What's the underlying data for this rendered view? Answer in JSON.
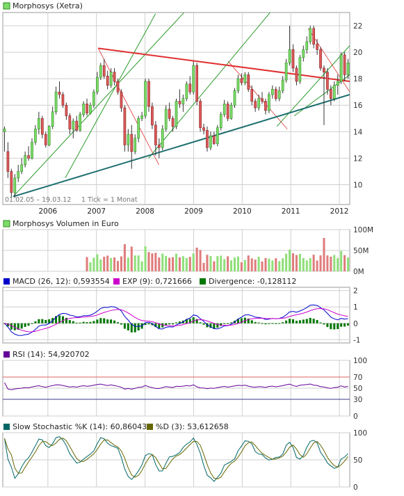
{
  "colors": {
    "up": "#7ddc6a",
    "up_edge": "#2f8a22",
    "down": "#dc5a5a",
    "down_edge": "#8a1f1f",
    "volume_up": "#8fe07a",
    "volume_down": "#e07c7c",
    "macd": "#0000cc",
    "signal": "#cc00cc",
    "divergence": "#007700",
    "rsi": "#660099",
    "stoch_k": "#006666",
    "stoch_d": "#666600",
    "grid": "#cfcfcf",
    "frame": "#999999",
    "support": "#1c6e6e",
    "resistance": "#e03030",
    "channel": "#2a9a2a",
    "rsi_hi": "#e06060",
    "rsi_lo": "#3a3a8a"
  },
  "panels": {
    "price": {
      "legend": "Morphosys (Xetra)",
      "range": "01.02.05 – 19.03.12",
      "tick_info": "1 Tick = 1 Monat",
      "y_ticks": [
        "22",
        "20",
        "18",
        "16",
        "14",
        "12",
        "10"
      ]
    },
    "volume": {
      "legend": "Morphosys Volumen in Euro",
      "y_ticks": [
        "100M",
        "50M",
        "0M"
      ]
    },
    "macd": {
      "legend_macd": "MACD (26, 12): 0,593554",
      "legend_exp": "EXP (9): 0,721666",
      "legend_div": "Divergence: -0,128112",
      "y_ticks": [
        "2",
        "1",
        "0",
        "-1"
      ]
    },
    "rsi": {
      "legend": "RSI (14): 54,920702",
      "y_ticks": [
        "100",
        "70",
        "50",
        "30",
        "0"
      ]
    },
    "stoch": {
      "legend_k": "Slow Stochastic %K (14): 60,860431",
      "legend_d": "%D (3): 53,612658",
      "y_ticks": [
        "100",
        "50",
        "0"
      ]
    }
  },
  "chart_data": {
    "type": "candlestick",
    "x_ticks": [
      "2006",
      "2007",
      "2008",
      "2009",
      "2010",
      "2011",
      "2012"
    ],
    "price": {
      "ylim": [
        8.5,
        23
      ],
      "candles": [
        [
          14.0,
          14.4,
          12.5,
          14.2
        ],
        [
          12.5,
          13.2,
          10.5,
          11.0
        ],
        [
          11.0,
          11.2,
          9.0,
          9.4
        ],
        [
          9.4,
          10.8,
          9.0,
          10.5
        ],
        [
          10.5,
          11.5,
          10.2,
          11.0
        ],
        [
          11.0,
          12.0,
          10.8,
          11.5
        ],
        [
          11.5,
          12.5,
          11.3,
          12.2
        ],
        [
          12.2,
          12.9,
          11.8,
          12.0
        ],
        [
          12.0,
          13.5,
          11.9,
          13.2
        ],
        [
          13.2,
          14.5,
          13.0,
          14.2
        ],
        [
          14.2,
          15.5,
          13.8,
          15.0
        ],
        [
          15.0,
          15.2,
          13.5,
          13.8
        ],
        [
          13.8,
          14.0,
          12.8,
          13.0
        ],
        [
          13.0,
          14.5,
          12.9,
          14.4
        ],
        [
          14.4,
          15.9,
          14.2,
          15.5
        ],
        [
          15.5,
          17.4,
          15.3,
          17.0
        ],
        [
          17.0,
          17.8,
          16.5,
          16.8
        ],
        [
          16.8,
          17.0,
          15.8,
          16.0
        ],
        [
          16.0,
          16.2,
          14.9,
          15.2
        ],
        [
          15.2,
          15.4,
          13.8,
          14.2
        ],
        [
          14.2,
          15.0,
          13.5,
          14.8
        ],
        [
          14.8,
          15.2,
          14.0,
          14.1
        ],
        [
          14.1,
          15.5,
          14.0,
          15.3
        ],
        [
          15.3,
          16.3,
          15.1,
          16.1
        ],
        [
          16.1,
          16.5,
          15.2,
          15.4
        ],
        [
          15.4,
          16.2,
          15.3,
          16.0
        ],
        [
          16.0,
          17.2,
          15.8,
          17.0
        ],
        [
          17.0,
          18.5,
          16.8,
          18.1
        ],
        [
          18.1,
          19.2,
          17.9,
          19.0
        ],
        [
          19.0,
          19.5,
          18.0,
          18.2
        ],
        [
          18.2,
          18.6,
          17.2,
          17.5
        ],
        [
          17.5,
          18.8,
          17.3,
          18.5
        ],
        [
          18.5,
          18.8,
          17.5,
          17.8
        ],
        [
          17.8,
          18.0,
          16.8,
          17.0
        ],
        [
          17.0,
          17.2,
          15.5,
          15.8
        ],
        [
          15.8,
          16.0,
          12.5,
          13.0
        ],
        [
          13.0,
          14.2,
          12.5,
          13.8
        ],
        [
          13.8,
          14.5,
          11.2,
          12.5
        ],
        [
          12.5,
          13.8,
          12.3,
          13.5
        ],
        [
          13.5,
          15.2,
          13.2,
          15.0
        ],
        [
          15.0,
          15.5,
          14.8,
          15.2
        ],
        [
          15.2,
          18.0,
          15.0,
          17.8
        ],
        [
          17.8,
          18.0,
          15.5,
          15.9
        ],
        [
          15.9,
          16.2,
          14.2,
          14.5
        ],
        [
          14.5,
          14.8,
          12.2,
          13.0
        ],
        [
          13.0,
          13.5,
          12.0,
          12.8
        ],
        [
          12.8,
          14.5,
          12.6,
          14.2
        ],
        [
          14.2,
          16.0,
          14.0,
          15.7
        ],
        [
          15.7,
          16.2,
          14.8,
          15.0
        ],
        [
          15.0,
          15.2,
          14.0,
          14.4
        ],
        [
          14.4,
          16.5,
          14.2,
          16.3
        ],
        [
          16.3,
          17.2,
          15.8,
          16.1
        ],
        [
          16.1,
          16.8,
          15.5,
          16.5
        ],
        [
          16.5,
          17.8,
          16.3,
          17.6
        ],
        [
          17.6,
          18.2,
          16.8,
          17.0
        ],
        [
          17.0,
          19.3,
          16.8,
          19.0
        ],
        [
          19.0,
          19.2,
          16.0,
          16.3
        ],
        [
          16.3,
          16.5,
          14.0,
          14.3
        ],
        [
          14.3,
          14.6,
          13.8,
          14.1
        ],
        [
          14.1,
          14.4,
          12.5,
          12.8
        ],
        [
          12.8,
          14.0,
          12.6,
          13.7
        ],
        [
          13.7,
          14.0,
          13.0,
          13.1
        ],
        [
          13.1,
          14.5,
          12.9,
          14.3
        ],
        [
          14.3,
          15.5,
          14.1,
          15.3
        ],
        [
          15.3,
          16.4,
          15.1,
          16.1
        ],
        [
          16.1,
          16.3,
          14.8,
          15.0
        ],
        [
          15.0,
          16.2,
          14.9,
          16.0
        ],
        [
          16.0,
          17.3,
          15.8,
          17.1
        ],
        [
          17.1,
          18.3,
          16.9,
          18.0
        ],
        [
          18.0,
          18.4,
          17.5,
          17.7
        ],
        [
          17.7,
          18.5,
          17.5,
          18.3
        ],
        [
          18.3,
          18.5,
          17.0,
          17.2
        ],
        [
          17.2,
          17.5,
          16.0,
          16.3
        ],
        [
          16.3,
          16.5,
          15.5,
          15.8
        ],
        [
          15.8,
          16.8,
          15.6,
          16.5
        ],
        [
          16.5,
          17.0,
          16.1,
          16.3
        ],
        [
          16.3,
          16.5,
          15.3,
          15.6
        ],
        [
          15.6,
          17.0,
          15.4,
          16.8
        ],
        [
          16.8,
          17.5,
          16.5,
          17.2
        ],
        [
          17.2,
          17.4,
          16.3,
          16.5
        ],
        [
          16.5,
          17.4,
          16.3,
          17.1
        ],
        [
          17.1,
          18.2,
          16.9,
          17.9
        ],
        [
          17.9,
          19.5,
          17.7,
          19.2
        ],
        [
          19.2,
          22.0,
          19.0,
          20.2
        ],
        [
          20.2,
          20.6,
          18.5,
          18.8
        ],
        [
          18.8,
          19.0,
          17.5,
          17.8
        ],
        [
          17.8,
          19.8,
          17.6,
          19.6
        ],
        [
          19.6,
          20.5,
          19.3,
          20.2
        ],
        [
          20.2,
          21.2,
          19.9,
          20.8
        ],
        [
          20.8,
          22.0,
          20.6,
          21.8
        ],
        [
          21.8,
          22.0,
          20.3,
          20.6
        ],
        [
          20.6,
          21.0,
          19.8,
          20.2
        ],
        [
          20.2,
          20.4,
          18.6,
          18.8
        ],
        [
          18.8,
          19.0,
          14.5,
          18.5
        ],
        [
          18.5,
          18.8,
          16.8,
          17.2
        ],
        [
          17.2,
          17.5,
          16.0,
          16.5
        ],
        [
          16.5,
          17.8,
          16.3,
          17.5
        ],
        [
          17.5,
          18.3,
          16.8,
          17.8
        ],
        [
          17.8,
          20.0,
          17.6,
          19.8
        ],
        [
          19.8,
          20.0,
          17.8,
          18.3
        ],
        [
          18.3,
          19.5,
          18.0,
          19.2
        ]
      ],
      "resistance": [
        [
          0.275,
          20.3
        ],
        [
          1.0,
          17.8
        ]
      ],
      "support": [
        [
          0.03,
          9.1
        ],
        [
          1.0,
          16.8
        ]
      ],
      "channel_lines": [
        [
          [
            0.03,
            9.1
          ],
          [
            0.54,
            23.5
          ]
        ],
        [
          [
            0.18,
            10.5
          ],
          [
            0.44,
            22.9
          ]
        ],
        [
          [
            0.42,
            12.0
          ],
          [
            0.78,
            23.3
          ]
        ],
        [
          [
            0.79,
            14.4
          ],
          [
            1.0,
            20.5
          ]
        ],
        [
          [
            0.84,
            15.2
          ],
          [
            1.0,
            18.3
          ]
        ]
      ],
      "thin_red_lines": [
        [
          [
            0.275,
            20.3
          ],
          [
            0.45,
            11.5
          ]
        ],
        [
          [
            0.65,
            19.3
          ],
          [
            0.82,
            14.2
          ]
        ],
        [
          [
            0.88,
            21.8
          ],
          [
            1.0,
            17.0
          ]
        ]
      ]
    },
    "volume": {
      "ylim": [
        0,
        100
      ],
      "values": [
        0,
        0,
        0,
        0,
        0,
        0,
        0,
        0,
        0,
        0,
        0,
        0,
        0,
        0,
        0,
        0,
        0,
        0,
        0,
        0,
        0,
        0,
        0,
        0,
        0,
        0,
        0,
        0,
        0,
        0,
        0,
        0,
        0,
        0,
        0,
        0,
        0,
        0,
        0,
        0,
        0,
        0,
        0,
        0,
        0,
        0,
        0,
        0,
        0,
        0,
        0,
        0,
        0,
        0,
        0,
        0,
        0,
        0,
        0,
        0,
        0,
        0,
        0,
        0,
        0,
        0,
        0,
        0,
        0,
        0,
        0,
        0,
        0,
        0,
        0,
        0,
        0,
        0,
        0,
        0,
        0,
        0,
        0,
        0,
        0,
        0,
        0,
        0,
        0,
        0,
        0,
        0,
        0,
        0,
        0,
        0,
        0,
        0,
        0,
        0,
        0
      ],
      "start_index": 0
    },
    "macd": {
      "ylim": [
        -1.2,
        2.2
      ]
    },
    "rsi": {
      "ylim": [
        0,
        100
      ],
      "levels": [
        70,
        30
      ]
    },
    "stoch": {
      "ylim": [
        0,
        100
      ]
    }
  }
}
